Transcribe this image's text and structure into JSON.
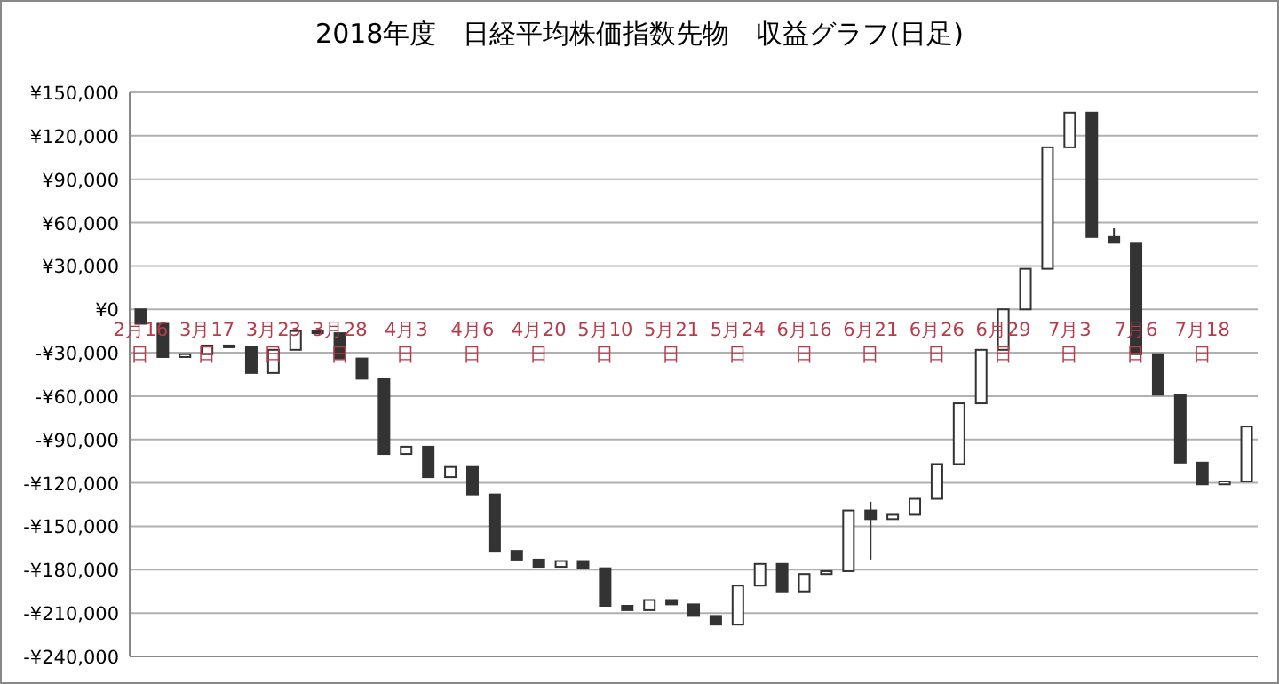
{
  "chart_data": {
    "type": "candlestick",
    "title": "2018年度　日経平均株価指数先物　収益グラフ(日足)",
    "categories": [
      "2月16日",
      null,
      null,
      "3月17日",
      null,
      null,
      "3月23日",
      null,
      null,
      "3月28日",
      null,
      null,
      "4月3日",
      null,
      null,
      "4月6日",
      null,
      null,
      "4月20日",
      null,
      null,
      "5月10日",
      null,
      null,
      "5月21日",
      null,
      null,
      "5月24日",
      null,
      null,
      "6月16日",
      null,
      null,
      "6月21日",
      null,
      null,
      "6月26日",
      null,
      null,
      "6月29日",
      null,
      null,
      "7月3日",
      null,
      null,
      "7月6日",
      null,
      null,
      "7月18日",
      null,
      null
    ],
    "ohlc": [
      [
        0,
        0,
        -10000,
        -10000
      ],
      [
        -10000,
        -10000,
        -33000,
        -33000
      ],
      [
        -33000,
        -31000,
        -33000,
        -31000
      ],
      [
        -31000,
        -25000,
        -31000,
        -25000
      ],
      [
        -25000,
        -25000,
        -26000,
        -26000
      ],
      [
        -26000,
        -26000,
        -44000,
        -44000
      ],
      [
        -44000,
        -28000,
        -44000,
        -28000
      ],
      [
        -28000,
        -15000,
        -28000,
        -15000
      ],
      [
        -15000,
        -15000,
        -16500,
        -16500
      ],
      [
        -16500,
        -16500,
        -34000,
        -34000
      ],
      [
        -34000,
        -34000,
        -48000,
        -48000
      ],
      [
        -48000,
        -48000,
        -100000,
        -100000
      ],
      [
        -100000,
        -95000,
        -100000,
        -95000
      ],
      [
        -95000,
        -95000,
        -116000,
        -116000
      ],
      [
        -116000,
        -109000,
        -116000,
        -109000
      ],
      [
        -109000,
        -109000,
        -128000,
        -128000
      ],
      [
        -128000,
        -128000,
        -167000,
        -167000
      ],
      [
        -167000,
        -167000,
        -173000,
        -173000
      ],
      [
        -173000,
        -173000,
        -178000,
        -178000
      ],
      [
        -178000,
        -174000,
        -178000,
        -174000
      ],
      [
        -174000,
        -174000,
        -179000,
        -179000
      ],
      [
        -179000,
        -179000,
        -205000,
        -205000
      ],
      [
        -205000,
        -205000,
        -208000,
        -208000
      ],
      [
        -208000,
        -201000,
        -208000,
        -201000
      ],
      [
        -201000,
        -201000,
        -204000,
        -204000
      ],
      [
        -204000,
        -204000,
        -212000,
        -212000
      ],
      [
        -212000,
        -212000,
        -218000,
        -218000
      ],
      [
        -218000,
        -191000,
        -218000,
        -191000
      ],
      [
        -191000,
        -176000,
        -191000,
        -176000
      ],
      [
        -176000,
        -176000,
        -195000,
        -195000
      ],
      [
        -195000,
        -183000,
        -195000,
        -183000
      ],
      [
        -183000,
        -181000,
        -183000,
        -181000
      ],
      [
        -181000,
        -139000,
        -181000,
        -139000
      ],
      [
        -139000,
        -133000,
        -173000,
        -145000
      ],
      [
        -145000,
        -142000,
        -145000,
        -142000
      ],
      [
        -142000,
        -131000,
        -142000,
        -131000
      ],
      [
        -131000,
        -107000,
        -131000,
        -107000
      ],
      [
        -107000,
        -65000,
        -107000,
        -65000
      ],
      [
        -65000,
        -28000,
        -65000,
        -28000
      ],
      [
        -28000,
        0,
        -28000,
        0
      ],
      [
        0,
        28000,
        0,
        28000
      ],
      [
        28000,
        112000,
        28000,
        112000
      ],
      [
        112000,
        136000,
        112000,
        136000
      ],
      [
        136000,
        136000,
        50000,
        50000
      ],
      [
        50000,
        56000,
        46000,
        46000
      ],
      [
        46000,
        46000,
        -31000,
        -31000
      ],
      [
        -31000,
        -31000,
        -59000,
        -59000
      ],
      [
        -59000,
        -59000,
        -106000,
        -106000
      ],
      [
        -106000,
        -106000,
        -121000,
        -121000
      ],
      [
        -121000,
        -119000,
        -121000,
        -119000
      ],
      [
        -119000,
        -81000,
        -119000,
        -81000
      ]
    ],
    "ylim": [
      -240000,
      150000
    ],
    "yticks": [
      {
        "value": -240000,
        "label": "-¥240,000"
      },
      {
        "value": -210000,
        "label": "-¥210,000"
      },
      {
        "value": -180000,
        "label": "-¥180,000"
      },
      {
        "value": -150000,
        "label": "-¥150,000"
      },
      {
        "value": -120000,
        "label": "-¥120,000"
      },
      {
        "value": -90000,
        "label": "-¥90,000"
      },
      {
        "value": -60000,
        "label": "-¥60,000"
      },
      {
        "value": -30000,
        "label": "-¥30,000"
      },
      {
        "value": 0,
        "label": "¥0"
      },
      {
        "value": 30000,
        "label": "¥30,000"
      },
      {
        "value": 60000,
        "label": "¥60,000"
      },
      {
        "value": 90000,
        "label": "¥90,000"
      },
      {
        "value": 120000,
        "label": "¥120,000"
      },
      {
        "value": 150000,
        "label": "¥150,000"
      }
    ],
    "grid": "y"
  }
}
